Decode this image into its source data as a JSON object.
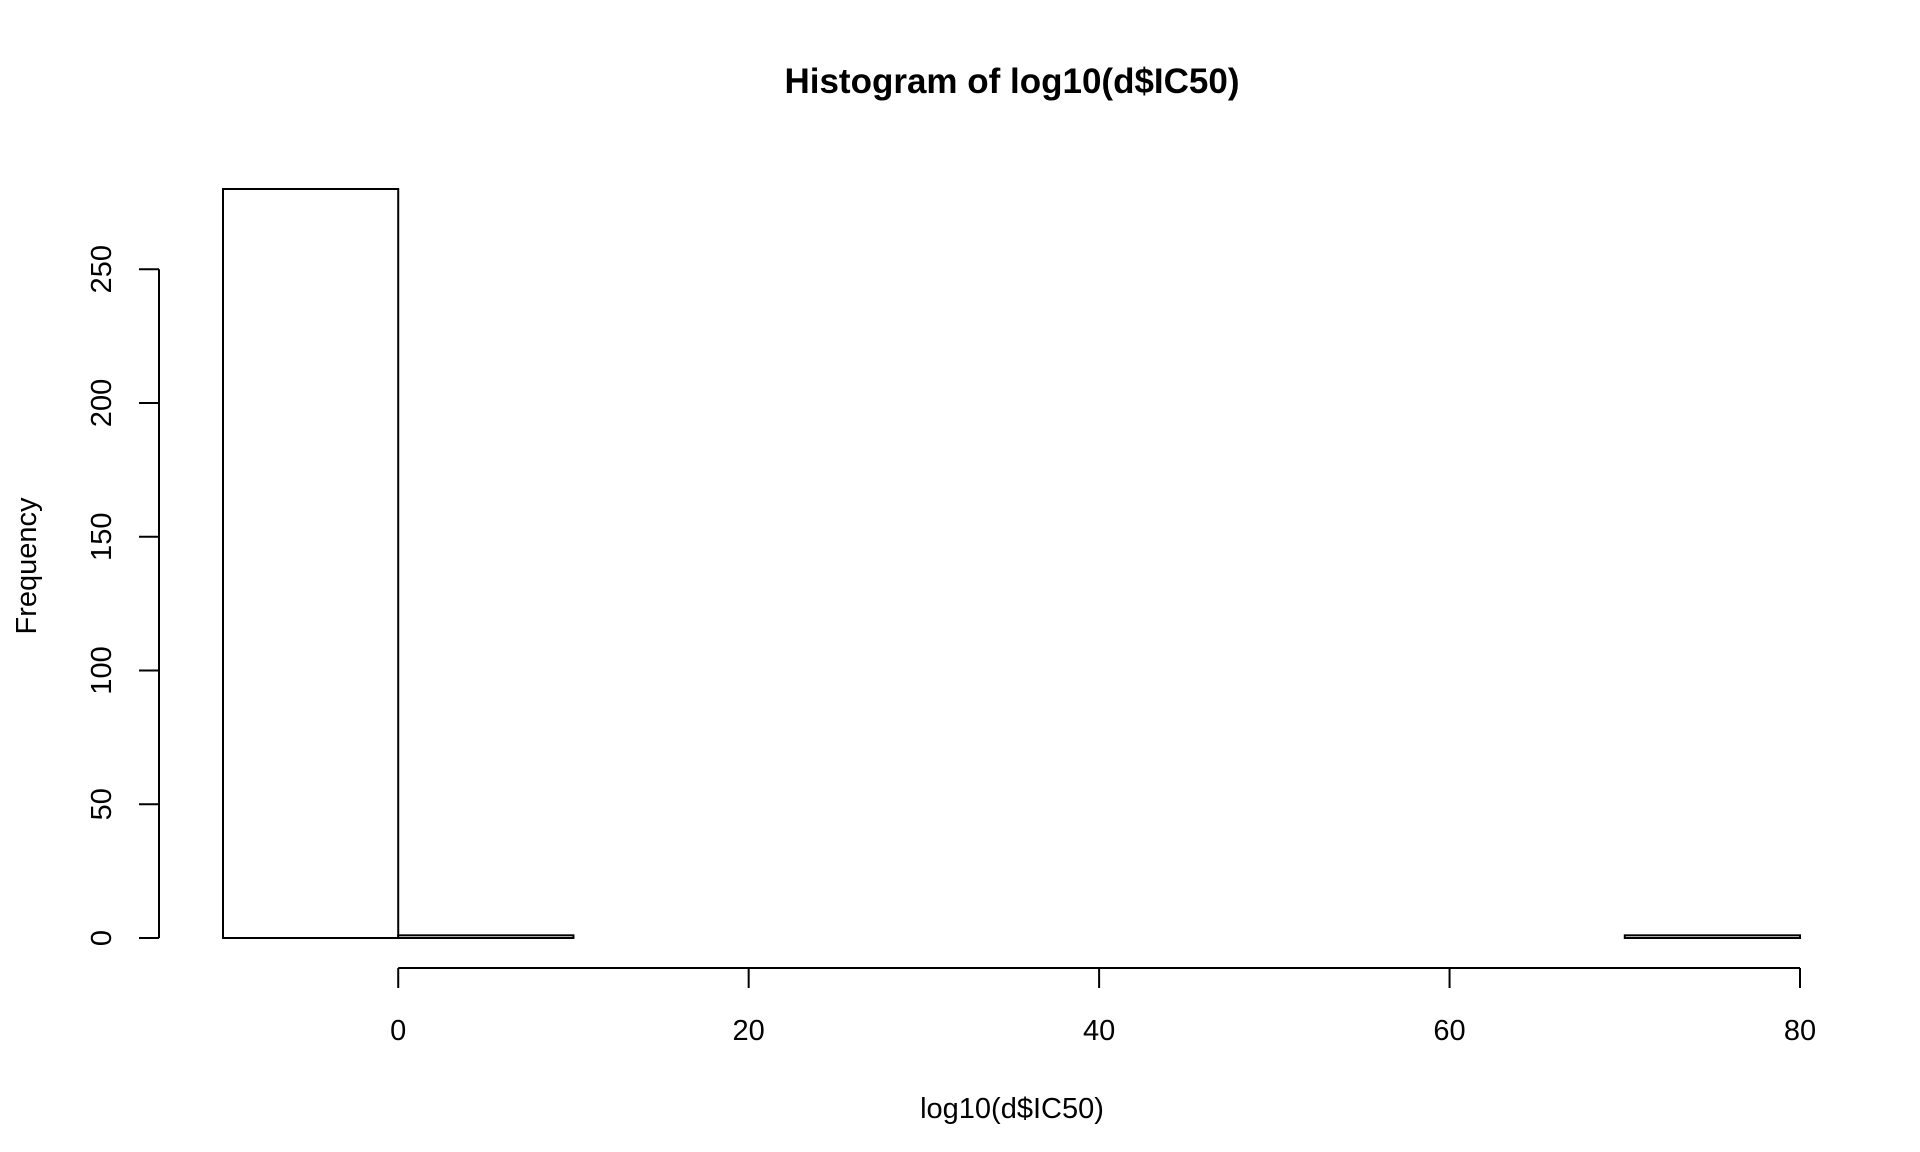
{
  "chart_data": {
    "type": "bar",
    "subtype": "histogram",
    "title": "Histogram of log10(d$IC50)",
    "xlabel": "log10(d$IC50)",
    "ylabel": "Frequency",
    "bins": [
      {
        "start": -10,
        "end": 0,
        "count": 280
      },
      {
        "start": 0,
        "end": 10,
        "count": 1
      },
      {
        "start": 10,
        "end": 20,
        "count": 0
      },
      {
        "start": 20,
        "end": 30,
        "count": 0
      },
      {
        "start": 30,
        "end": 40,
        "count": 0
      },
      {
        "start": 40,
        "end": 50,
        "count": 0
      },
      {
        "start": 50,
        "end": 60,
        "count": 0
      },
      {
        "start": 60,
        "end": 70,
        "count": 0
      },
      {
        "start": 70,
        "end": 80,
        "count": 1
      }
    ],
    "xticks": [
      0,
      20,
      40,
      60,
      80
    ],
    "yticks": [
      0,
      50,
      100,
      150,
      200,
      250
    ],
    "xlim": [
      -10,
      80
    ],
    "ylim": [
      0,
      280
    ],
    "grid": false,
    "legend": "none",
    "bar_fill": "#ffffff",
    "bar_stroke": "#000000"
  }
}
